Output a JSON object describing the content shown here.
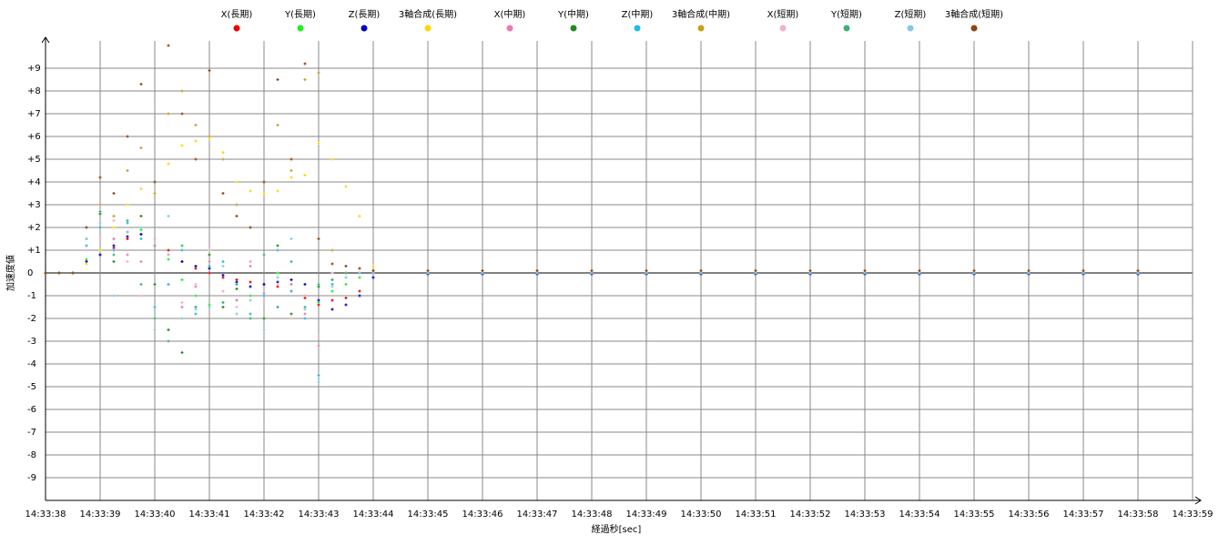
{
  "chart_data": {
    "type": "scatter",
    "x_label": "経過秒[sec]",
    "y_label": "加速度値",
    "xlim": [
      0,
      21
    ],
    "xticks": [
      {
        "value": 0,
        "label": "14:33:38"
      },
      {
        "value": 1,
        "label": "14:33:39"
      },
      {
        "value": 2,
        "label": "14:33:40"
      },
      {
        "value": 3,
        "label": "14:33:41"
      },
      {
        "value": 4,
        "label": "14:33:42"
      },
      {
        "value": 5,
        "label": "14:33:43"
      },
      {
        "value": 6,
        "label": "14:33:44"
      },
      {
        "value": 7,
        "label": "14:33:45"
      },
      {
        "value": 8,
        "label": "14:33:46"
      },
      {
        "value": 9,
        "label": "14:33:47"
      },
      {
        "value": 10,
        "label": "14:33:48"
      },
      {
        "value": 11,
        "label": "14:33:49"
      },
      {
        "value": 12,
        "label": "14:33:50"
      },
      {
        "value": 13,
        "label": "14:33:51"
      },
      {
        "value": 14,
        "label": "14:33:52"
      },
      {
        "value": 15,
        "label": "14:33:53"
      },
      {
        "value": 16,
        "label": "14:33:54"
      },
      {
        "value": 17,
        "label": "14:33:55"
      },
      {
        "value": 18,
        "label": "14:33:56"
      },
      {
        "value": 19,
        "label": "14:33:57"
      },
      {
        "value": 20,
        "label": "14:33:58"
      },
      {
        "value": 21,
        "label": "14:33:59"
      }
    ],
    "ylim": [
      -10,
      10
    ],
    "yticks": [
      -9,
      -8,
      -7,
      -6,
      -5,
      -4,
      -3,
      -2,
      -1,
      0,
      {
        "value": 1,
        "label": "+1"
      },
      {
        "value": 2,
        "label": "+2"
      },
      {
        "value": 3,
        "label": "+3"
      },
      {
        "value": 4,
        "label": "+4"
      },
      {
        "value": 5,
        "label": "+5"
      },
      {
        "value": 6,
        "label": "+6"
      },
      {
        "value": 7,
        "label": "+7"
      },
      {
        "value": 8,
        "label": "+8"
      },
      {
        "value": 9,
        "label": "+9"
      }
    ],
    "grid": true,
    "legend": "top",
    "x": [
      0,
      0.25,
      0.5,
      0.75,
      1,
      1.25,
      1.5,
      1.75,
      2,
      2.25,
      2.5,
      2.75,
      3,
      3.25,
      3.5,
      3.75,
      4,
      4.25,
      4.5,
      4.75,
      5,
      5.25,
      5.5,
      5.75,
      6,
      7,
      8,
      9,
      10,
      11,
      12,
      13,
      14,
      15,
      16,
      17,
      18,
      19,
      20
    ],
    "series": [
      {
        "name": "X(長期)",
        "color": "#ee0000",
        "values": [
          0,
          0,
          0,
          0.5,
          0.8,
          1.1,
          1.5,
          1.7,
          1.5,
          1.0,
          0.5,
          0.2,
          0,
          -0.2,
          -0.3,
          -0.4,
          -0.5,
          -0.6,
          -0.8,
          -1.1,
          -1.4,
          -1.2,
          -1.1,
          -0.8,
          0,
          0,
          0,
          0,
          0,
          0,
          0,
          0,
          0,
          0,
          0,
          0,
          0,
          0,
          0
        ]
      },
      {
        "name": "Y(長期)",
        "color": "#22ee22",
        "values": [
          0,
          0,
          0,
          0.6,
          1.0,
          1.5,
          1.8,
          1.9,
          1.5,
          0.6,
          -0.3,
          -1.0,
          -1.4,
          -1.3,
          -1.2,
          -1.0,
          -0.5,
          0,
          -0.5,
          -1.0,
          -1.3,
          -0.8,
          -0.5,
          -0.2,
          0,
          0,
          0,
          0,
          0,
          0,
          0,
          0,
          0,
          0,
          0,
          0,
          0,
          0,
          0
        ]
      },
      {
        "name": "Z(長期)",
        "color": "#0000cc",
        "values": [
          0,
          0,
          0,
          0.5,
          0.8,
          1.2,
          1.6,
          1.7,
          1.2,
          0.8,
          0.5,
          0.3,
          0.2,
          -0.1,
          -0.4,
          -0.6,
          -0.5,
          -0.4,
          -0.3,
          -0.5,
          -1.2,
          -1.6,
          -1.4,
          -1.0,
          -0.2,
          -0.05,
          -0.05,
          -0.05,
          -0.05,
          -0.05,
          -0.05,
          -0.05,
          -0.05,
          -0.05,
          -0.05,
          -0.05,
          -0.05,
          -0.05,
          -0.05
        ]
      },
      {
        "name": "3軸合成(長期)",
        "color": "#ffd700",
        "values": [
          0,
          0,
          0,
          0.4,
          1.0,
          2.0,
          3.0,
          3.7,
          4.0,
          4.8,
          5.6,
          5.8,
          5.9,
          5.3,
          4.0,
          3.6,
          3.5,
          3.6,
          4.2,
          4.3,
          5.7,
          5.0,
          3.8,
          2.5,
          0.3,
          0.1,
          0.1,
          0.1,
          0.1,
          0.1,
          0.1,
          0.1,
          0.1,
          0.1,
          0.1,
          0.1,
          0.1,
          0.1,
          0.1
        ]
      },
      {
        "name": "X(中期)",
        "color": "#e87ab8",
        "values": [
          0,
          0,
          0,
          1.0,
          2.0,
          1.5,
          0.8,
          0.5,
          1.2,
          -0.5,
          -1.5,
          -0.6,
          0.5,
          -0.8,
          -1.2,
          0.3,
          -0.9,
          -1.5,
          -0.5,
          -1.8,
          -3.2,
          -0.5,
          0,
          0,
          0,
          0,
          0,
          0,
          0,
          0,
          0,
          0,
          0,
          0,
          0,
          0,
          0,
          0,
          0
        ]
      },
      {
        "name": "Y(中期)",
        "color": "#228822",
        "values": [
          0,
          0,
          0,
          1.5,
          2.6,
          0.5,
          1.8,
          2.5,
          -0.5,
          -2.5,
          -3.5,
          -1.5,
          0.8,
          -1.5,
          -0.7,
          0.5,
          -2.0,
          1.2,
          -1.8,
          -1.0,
          -0.6,
          -0.3,
          0,
          0,
          0,
          0,
          0,
          0,
          0,
          0,
          0,
          0,
          0,
          0,
          0,
          0,
          0,
          0,
          0
        ]
      },
      {
        "name": "Z(中期)",
        "color": "#22bbee",
        "values": [
          0,
          0,
          0,
          1.2,
          2.0,
          1.0,
          2.2,
          1.5,
          -1.5,
          -0.5,
          1.0,
          -1.8,
          -1.5,
          0.5,
          -0.5,
          -1.8,
          -1.0,
          1.0,
          -0.8,
          -2.0,
          -4.5,
          -0.5,
          -0.2,
          0,
          0,
          0,
          0,
          0,
          0,
          0,
          0,
          0,
          0,
          0,
          0,
          0,
          0,
          0,
          0
        ]
      },
      {
        "name": "3軸合成(中期)",
        "color": "#c8a020",
        "values": [
          0,
          0,
          0,
          1.5,
          3.0,
          2.5,
          4.5,
          5.5,
          3.5,
          7.0,
          8.0,
          6.5,
          6.0,
          5.0,
          3.0,
          2.0,
          4.0,
          6.5,
          4.5,
          8.5,
          8.8,
          1.0,
          0.3,
          0.2,
          0.1,
          0.1,
          0.1,
          0.1,
          0.1,
          0.1,
          0.1,
          0.1,
          0.1,
          0.1,
          0.1,
          0.1,
          0.1,
          0.1,
          0.1
        ]
      },
      {
        "name": "X(短期)",
        "color": "#f4b0c0",
        "values": [
          0,
          0,
          0,
          1.0,
          1.5,
          2.3,
          0.5,
          -1.0,
          1.5,
          0.8,
          -1.3,
          -0.5,
          1.0,
          -0.8,
          -1.5,
          0.5,
          -1.2,
          -0.5,
          -2.0,
          -1.0,
          -2.8,
          0,
          0,
          0,
          0,
          0,
          0,
          0,
          0,
          0,
          0,
          0,
          0,
          0,
          0,
          0,
          0,
          0,
          0
        ]
      },
      {
        "name": "Y(短期)",
        "color": "#3cb371",
        "values": [
          0,
          0,
          0,
          2.0,
          2.7,
          0.8,
          2.3,
          -0.5,
          -2.0,
          -3.0,
          1.2,
          -1.5,
          0.3,
          -1.3,
          -0.5,
          -2.0,
          0.8,
          -1.5,
          0.5,
          -1.5,
          -0.5,
          -0.3,
          0,
          0,
          0,
          0,
          0,
          0,
          0,
          0,
          0,
          0,
          0,
          0,
          0,
          0,
          0,
          0,
          0
        ]
      },
      {
        "name": "Z(短期)",
        "color": "#87c8e8",
        "values": [
          0,
          0,
          0,
          1.5,
          2.2,
          -1.0,
          1.8,
          2.0,
          -2.5,
          2.5,
          -2.0,
          -1.6,
          -1.5,
          0.3,
          -1.8,
          -1.2,
          -2.5,
          -0.2,
          1.5,
          -1.6,
          -4.8,
          -0.6,
          -0.2,
          0,
          0,
          0,
          0,
          0,
          0,
          0,
          0,
          0,
          0,
          0,
          0,
          0,
          0,
          0,
          0
        ]
      },
      {
        "name": "3軸合成(短期)",
        "color": "#8b4513",
        "values": [
          0,
          0,
          0,
          2.0,
          4.2,
          3.5,
          6.0,
          8.3,
          4.0,
          10.0,
          7.0,
          5.0,
          8.9,
          3.5,
          2.5,
          2.0,
          4.0,
          8.5,
          5.0,
          9.2,
          1.5,
          0.4,
          0.3,
          0.2,
          0.1,
          0.1,
          0.1,
          0.1,
          0.1,
          0.1,
          0.1,
          0.1,
          0.1,
          0.1,
          0.1,
          0.1,
          0.1,
          0.1,
          0.1
        ]
      }
    ]
  }
}
